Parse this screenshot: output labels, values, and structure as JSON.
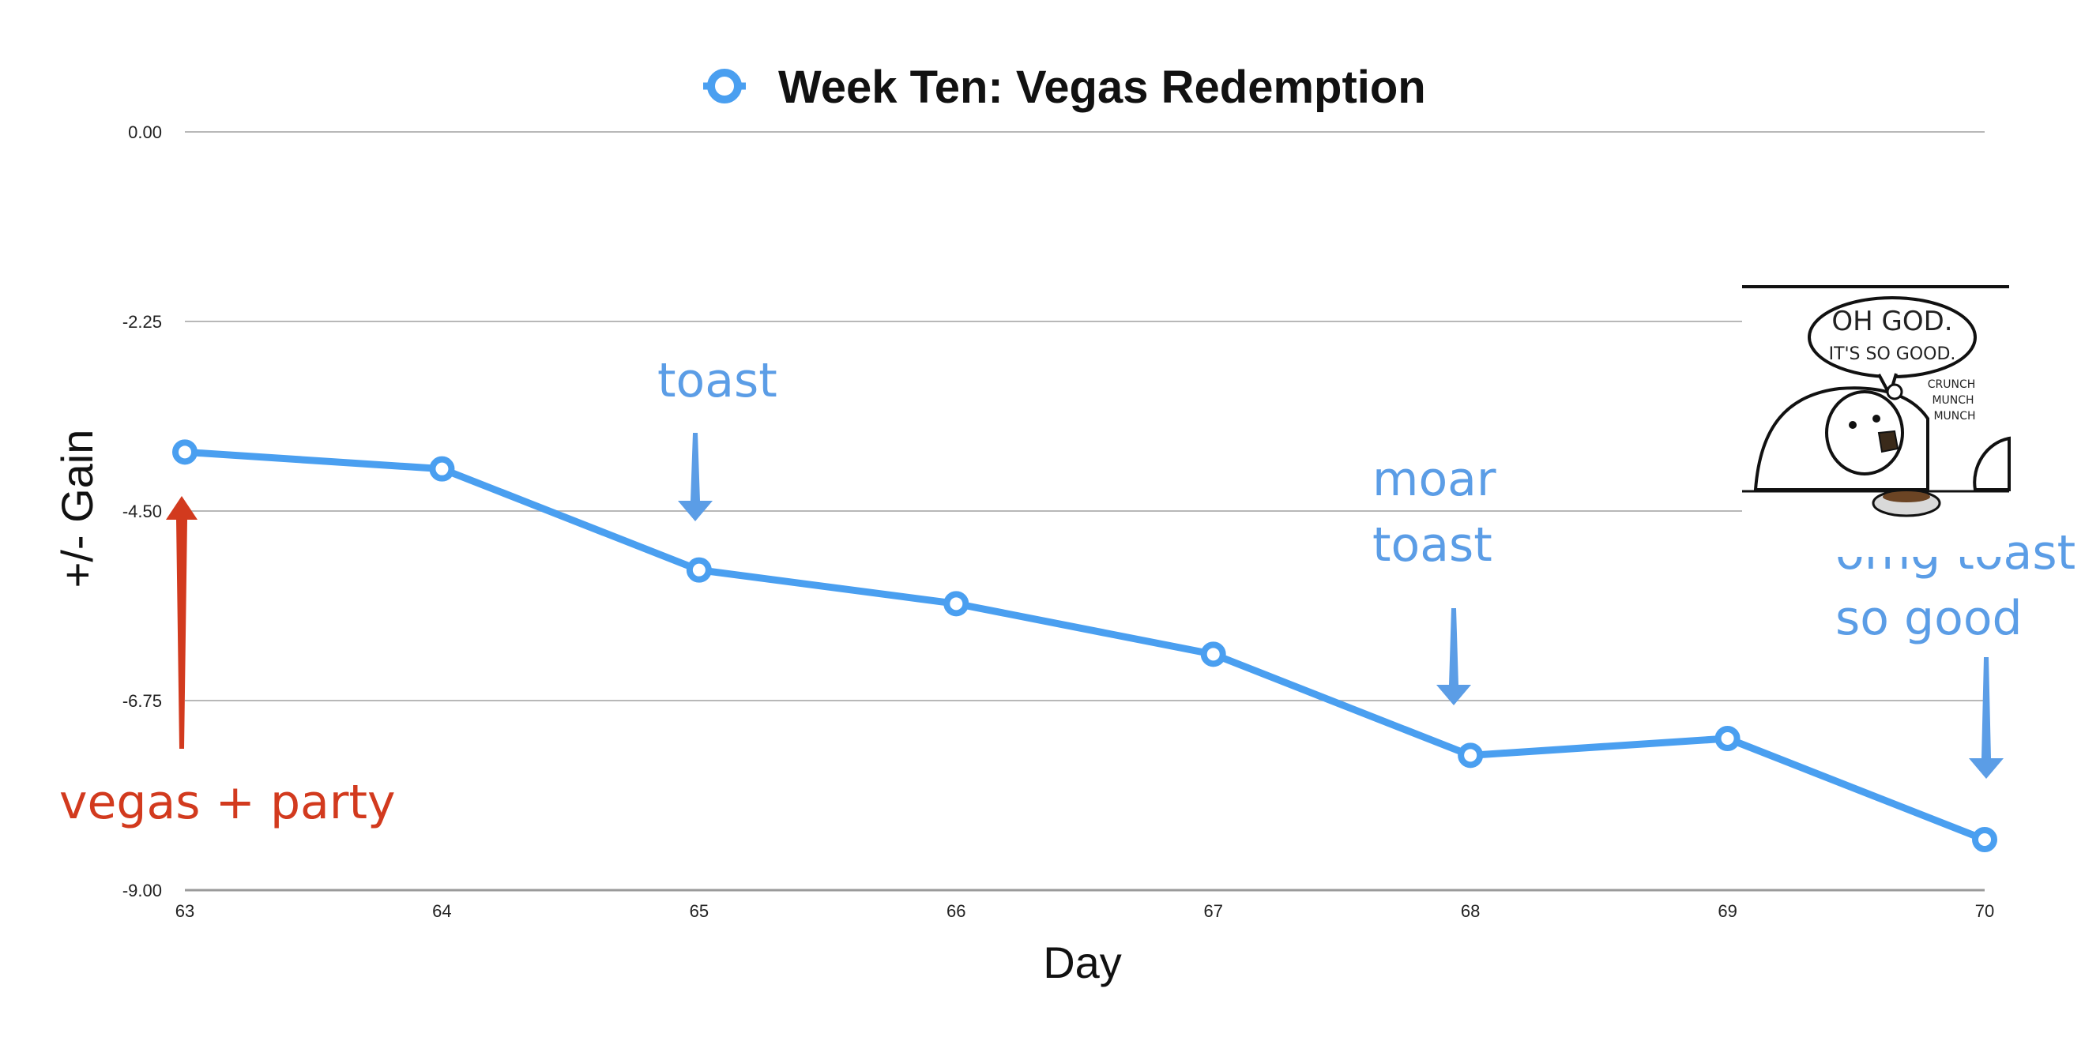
{
  "chart_data": {
    "type": "line",
    "title": "Week Ten: Vegas Redemption",
    "xlabel": "Day",
    "ylabel": "+/- Gain",
    "x": [
      63,
      64,
      65,
      66,
      67,
      68,
      69,
      70
    ],
    "y_ticks": [
      "0.00",
      "-2.25",
      "-4.50",
      "-6.75",
      "-9.00"
    ],
    "y_tick_values": [
      0,
      -2.25,
      -4.5,
      -6.75,
      -9
    ],
    "xlim": [
      63,
      70
    ],
    "ylim": [
      -9,
      0
    ],
    "grid": true,
    "legend_position": "top",
    "series": [
      {
        "name": "Week Ten: Vegas Redemption",
        "color": "#4a9ff0",
        "values": [
          -3.8,
          -4.0,
          -5.2,
          -5.6,
          -6.2,
          -7.4,
          -7.2,
          -8.4
        ]
      }
    ],
    "annotations": [
      {
        "lines": [
          "vegas + party"
        ],
        "color": "#d23a1e",
        "at_x": 63
      },
      {
        "lines": [
          "toast"
        ],
        "color": "#5b9de6",
        "at_x": 65
      },
      {
        "lines": [
          "moar",
          "toast"
        ],
        "color": "#5b9de6",
        "at_x": 68
      },
      {
        "lines": [
          "omg toast",
          "so good"
        ],
        "color": "#5b9de6",
        "at_x": 70
      }
    ]
  },
  "comic": {
    "line1": "OH GOD.",
    "line2": "IT'S SO GOOD.",
    "sfx": [
      "CRUNCH",
      "MUNCH",
      "MUNCH"
    ]
  }
}
